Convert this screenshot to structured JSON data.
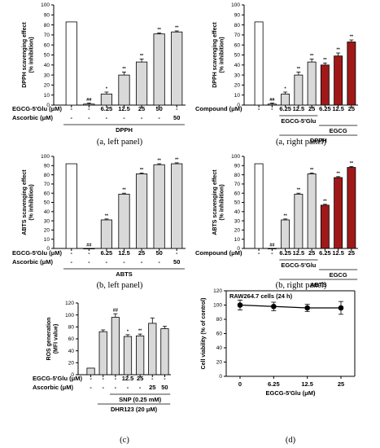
{
  "colors": {
    "gray": "#d9d9d9",
    "red": "#a01818",
    "black": "#1a1a1a",
    "white": "#ffffff"
  },
  "chart_data": [
    {
      "id": "a-left",
      "type": "bar",
      "ylabel": [
        "DPPH scavenging effect",
        "(% inhibition)"
      ],
      "ylim": [
        0,
        100
      ],
      "yticks": [
        0,
        10,
        20,
        30,
        40,
        50,
        60,
        70,
        80,
        90,
        100
      ],
      "bars": [
        {
          "value": 83,
          "err": 0,
          "color": "white",
          "sig": ""
        },
        {
          "value": 1,
          "err": 1,
          "color": "gray",
          "sig": "##"
        },
        {
          "value": 11,
          "err": 2,
          "color": "gray",
          "sig": "*"
        },
        {
          "value": 30,
          "err": 3,
          "color": "gray",
          "sig": "**"
        },
        {
          "value": 43,
          "err": 3,
          "color": "gray",
          "sig": "**"
        },
        {
          "value": 71,
          "err": 1,
          "color": "gray",
          "sig": "**"
        },
        {
          "value": 73,
          "err": 1,
          "color": "gray",
          "sig": "**"
        }
      ],
      "rows": [
        {
          "label": "EGCG-5'Glu (μM)",
          "cells": [
            "-",
            "-",
            "6.25",
            "12.5",
            "25",
            "50",
            "-"
          ]
        },
        {
          "label": "Ascorbic (μM)",
          "cells": [
            "-",
            "-",
            "-",
            "-",
            "-",
            "-",
            "50"
          ]
        }
      ],
      "groups": [
        {
          "label": "DPPH",
          "from": 0,
          "to": 6
        }
      ],
      "caption": "(a, left panel)"
    },
    {
      "id": "a-right",
      "type": "bar",
      "ylabel": [
        "DPPH scavenging effect",
        "(% inhibition)"
      ],
      "ylim": [
        0,
        100
      ],
      "yticks": [
        0,
        10,
        20,
        30,
        40,
        50,
        60,
        70,
        80,
        90,
        100
      ],
      "bars": [
        {
          "value": 83,
          "err": 0,
          "color": "white",
          "sig": ""
        },
        {
          "value": 1,
          "err": 1,
          "color": "gray",
          "sig": "##"
        },
        {
          "value": 11,
          "err": 2,
          "color": "gray",
          "sig": "*"
        },
        {
          "value": 30,
          "err": 3,
          "color": "gray",
          "sig": "**"
        },
        {
          "value": 43,
          "err": 3,
          "color": "gray",
          "sig": "**"
        },
        {
          "value": 40,
          "err": 2,
          "color": "red",
          "sig": "**"
        },
        {
          "value": 49,
          "err": 3,
          "color": "red",
          "sig": "**"
        },
        {
          "value": 63,
          "err": 2,
          "color": "red",
          "sig": "**"
        }
      ],
      "rows": [
        {
          "label": "Compound (μM)",
          "cells": [
            "-",
            "-",
            "6.25",
            "12.5",
            "25",
            "6.25",
            "12.5",
            "25"
          ]
        }
      ],
      "groups": [
        {
          "label": "EGCG-5'Glu",
          "from": 2,
          "to": 4
        },
        {
          "label": "EGCG",
          "from": 5,
          "to": 7
        },
        {
          "label": "DPPH",
          "from": 2,
          "to": 7
        }
      ],
      "caption": "(a, right panel)"
    },
    {
      "id": "b-left",
      "type": "bar",
      "ylabel": [
        "ABTS scavenging effect",
        "(% inhibition)"
      ],
      "ylim": [
        0,
        100
      ],
      "yticks": [
        0,
        10,
        20,
        30,
        40,
        50,
        60,
        70,
        80,
        90,
        100
      ],
      "bars": [
        {
          "value": 92,
          "err": 0,
          "color": "white",
          "sig": ""
        },
        {
          "value": 0,
          "err": 0,
          "color": "gray",
          "sig": "##"
        },
        {
          "value": 31,
          "err": 1,
          "color": "gray",
          "sig": "**"
        },
        {
          "value": 59,
          "err": 1,
          "color": "gray",
          "sig": "**"
        },
        {
          "value": 81,
          "err": 1,
          "color": "gray",
          "sig": "**"
        },
        {
          "value": 91,
          "err": 1,
          "color": "gray",
          "sig": "**"
        },
        {
          "value": 92,
          "err": 1,
          "color": "gray",
          "sig": "**"
        }
      ],
      "rows": [
        {
          "label": "EGCG-5'Glu (μM)",
          "cells": [
            "-",
            "-",
            "6.25",
            "12.5",
            "25",
            "50",
            "-"
          ]
        },
        {
          "label": "Ascorbic (μM)",
          "cells": [
            "-",
            "-",
            "-",
            "-",
            "-",
            "-",
            "50"
          ]
        }
      ],
      "groups": [
        {
          "label": "ABTS",
          "from": 0,
          "to": 6
        }
      ],
      "caption": "(b, left panel)"
    },
    {
      "id": "b-right",
      "type": "bar",
      "ylabel": [
        "ABTS scavenging effect",
        "(% inhibition)"
      ],
      "ylim": [
        0,
        100
      ],
      "yticks": [
        0,
        10,
        20,
        30,
        40,
        50,
        60,
        70,
        80,
        90,
        100
      ],
      "bars": [
        {
          "value": 92,
          "err": 0,
          "color": "white",
          "sig": ""
        },
        {
          "value": 0,
          "err": 0,
          "color": "gray",
          "sig": "##"
        },
        {
          "value": 31,
          "err": 1,
          "color": "gray",
          "sig": "**"
        },
        {
          "value": 59,
          "err": 1,
          "color": "gray",
          "sig": "**"
        },
        {
          "value": 81,
          "err": 1,
          "color": "gray",
          "sig": "**"
        },
        {
          "value": 47,
          "err": 1,
          "color": "red",
          "sig": "**"
        },
        {
          "value": 77,
          "err": 1,
          "color": "red",
          "sig": "**"
        },
        {
          "value": 88,
          "err": 1,
          "color": "red",
          "sig": "**"
        }
      ],
      "rows": [
        {
          "label": "Compound (μM)",
          "cells": [
            "-",
            "-",
            "6.25",
            "12.5",
            "25",
            "6.25",
            "12.5",
            "25"
          ]
        }
      ],
      "groups": [
        {
          "label": "EGCG-5'Glu",
          "from": 2,
          "to": 4
        },
        {
          "label": "EGCG",
          "from": 5,
          "to": 7
        },
        {
          "label": "ABTS",
          "from": 2,
          "to": 7
        }
      ],
      "caption": "(b, right panel)"
    },
    {
      "id": "c",
      "type": "bar",
      "ylabel": [
        "ROS generation",
        "(MFI value)"
      ],
      "ylim": [
        0,
        120
      ],
      "yticks": [
        0,
        20,
        40,
        60,
        80,
        100,
        120
      ],
      "bars": [
        {
          "value": 11,
          "err": 0,
          "color": "gray",
          "sig": ""
        },
        {
          "value": 72,
          "err": 3,
          "color": "gray",
          "sig": ""
        },
        {
          "value": 96,
          "err": 6,
          "color": "gray",
          "sig": "##"
        },
        {
          "value": 64,
          "err": 3,
          "color": "gray",
          "sig": "*"
        },
        {
          "value": 65,
          "err": 3,
          "color": "gray",
          "sig": "**"
        },
        {
          "value": 86,
          "err": 9,
          "color": "gray",
          "sig": ""
        },
        {
          "value": 77,
          "err": 4,
          "color": "gray",
          "sig": ""
        }
      ],
      "rows": [
        {
          "label": "EGCG-5'Glu (μM)",
          "cells": [
            "-",
            "-",
            "-",
            "12.5",
            "25",
            "-",
            "-"
          ]
        },
        {
          "label": "Ascorbic (μM)",
          "cells": [
            "-",
            "-",
            "-",
            "-",
            "-",
            "25",
            "50"
          ]
        }
      ],
      "groups": [
        {
          "label": "SNP (0.25 mM)",
          "from": 2,
          "to": 6
        },
        {
          "label": "DHR123 (20 μM)",
          "from": 1,
          "to": 6
        }
      ],
      "caption": "(c)"
    },
    {
      "id": "d",
      "type": "line",
      "title": "RAW264.7 cells (24 h)",
      "ylabel": [
        "Cell viability (% of control)"
      ],
      "xlabel": "EGCG-5'Glu (μM)",
      "ylim": [
        0,
        120
      ],
      "yticks": [
        0,
        20,
        40,
        60,
        80,
        100,
        120
      ],
      "x": [
        "0",
        "6.25",
        "12.5",
        "25"
      ],
      "values": [
        100,
        98,
        96,
        96
      ],
      "errs": [
        7,
        6,
        5,
        9
      ],
      "caption": "(d)"
    }
  ]
}
